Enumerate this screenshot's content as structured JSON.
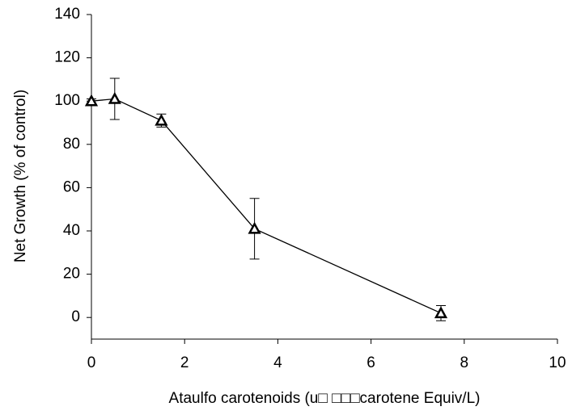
{
  "chart_data": {
    "type": "line",
    "x_label": "Ataulfo carotenoids (u□ □□□carotene Equiv/L)",
    "y_label": "Net Growth (% of control)",
    "x": [
      0,
      0.5,
      1.5,
      3.5,
      7.5
    ],
    "series": [
      {
        "name": "Net Growth",
        "color": "#000000",
        "values": [
          100,
          101,
          91,
          41,
          2
        ],
        "errors": [
          1,
          9.5,
          3,
          14,
          3.5
        ]
      }
    ],
    "xlim": [
      0,
      10
    ],
    "xticks": [
      0,
      2,
      4,
      6,
      8,
      10
    ],
    "ylim": [
      -10,
      140
    ],
    "yticks": [
      0,
      20,
      40,
      60,
      80,
      100,
      120,
      140
    ],
    "grid": false
  }
}
